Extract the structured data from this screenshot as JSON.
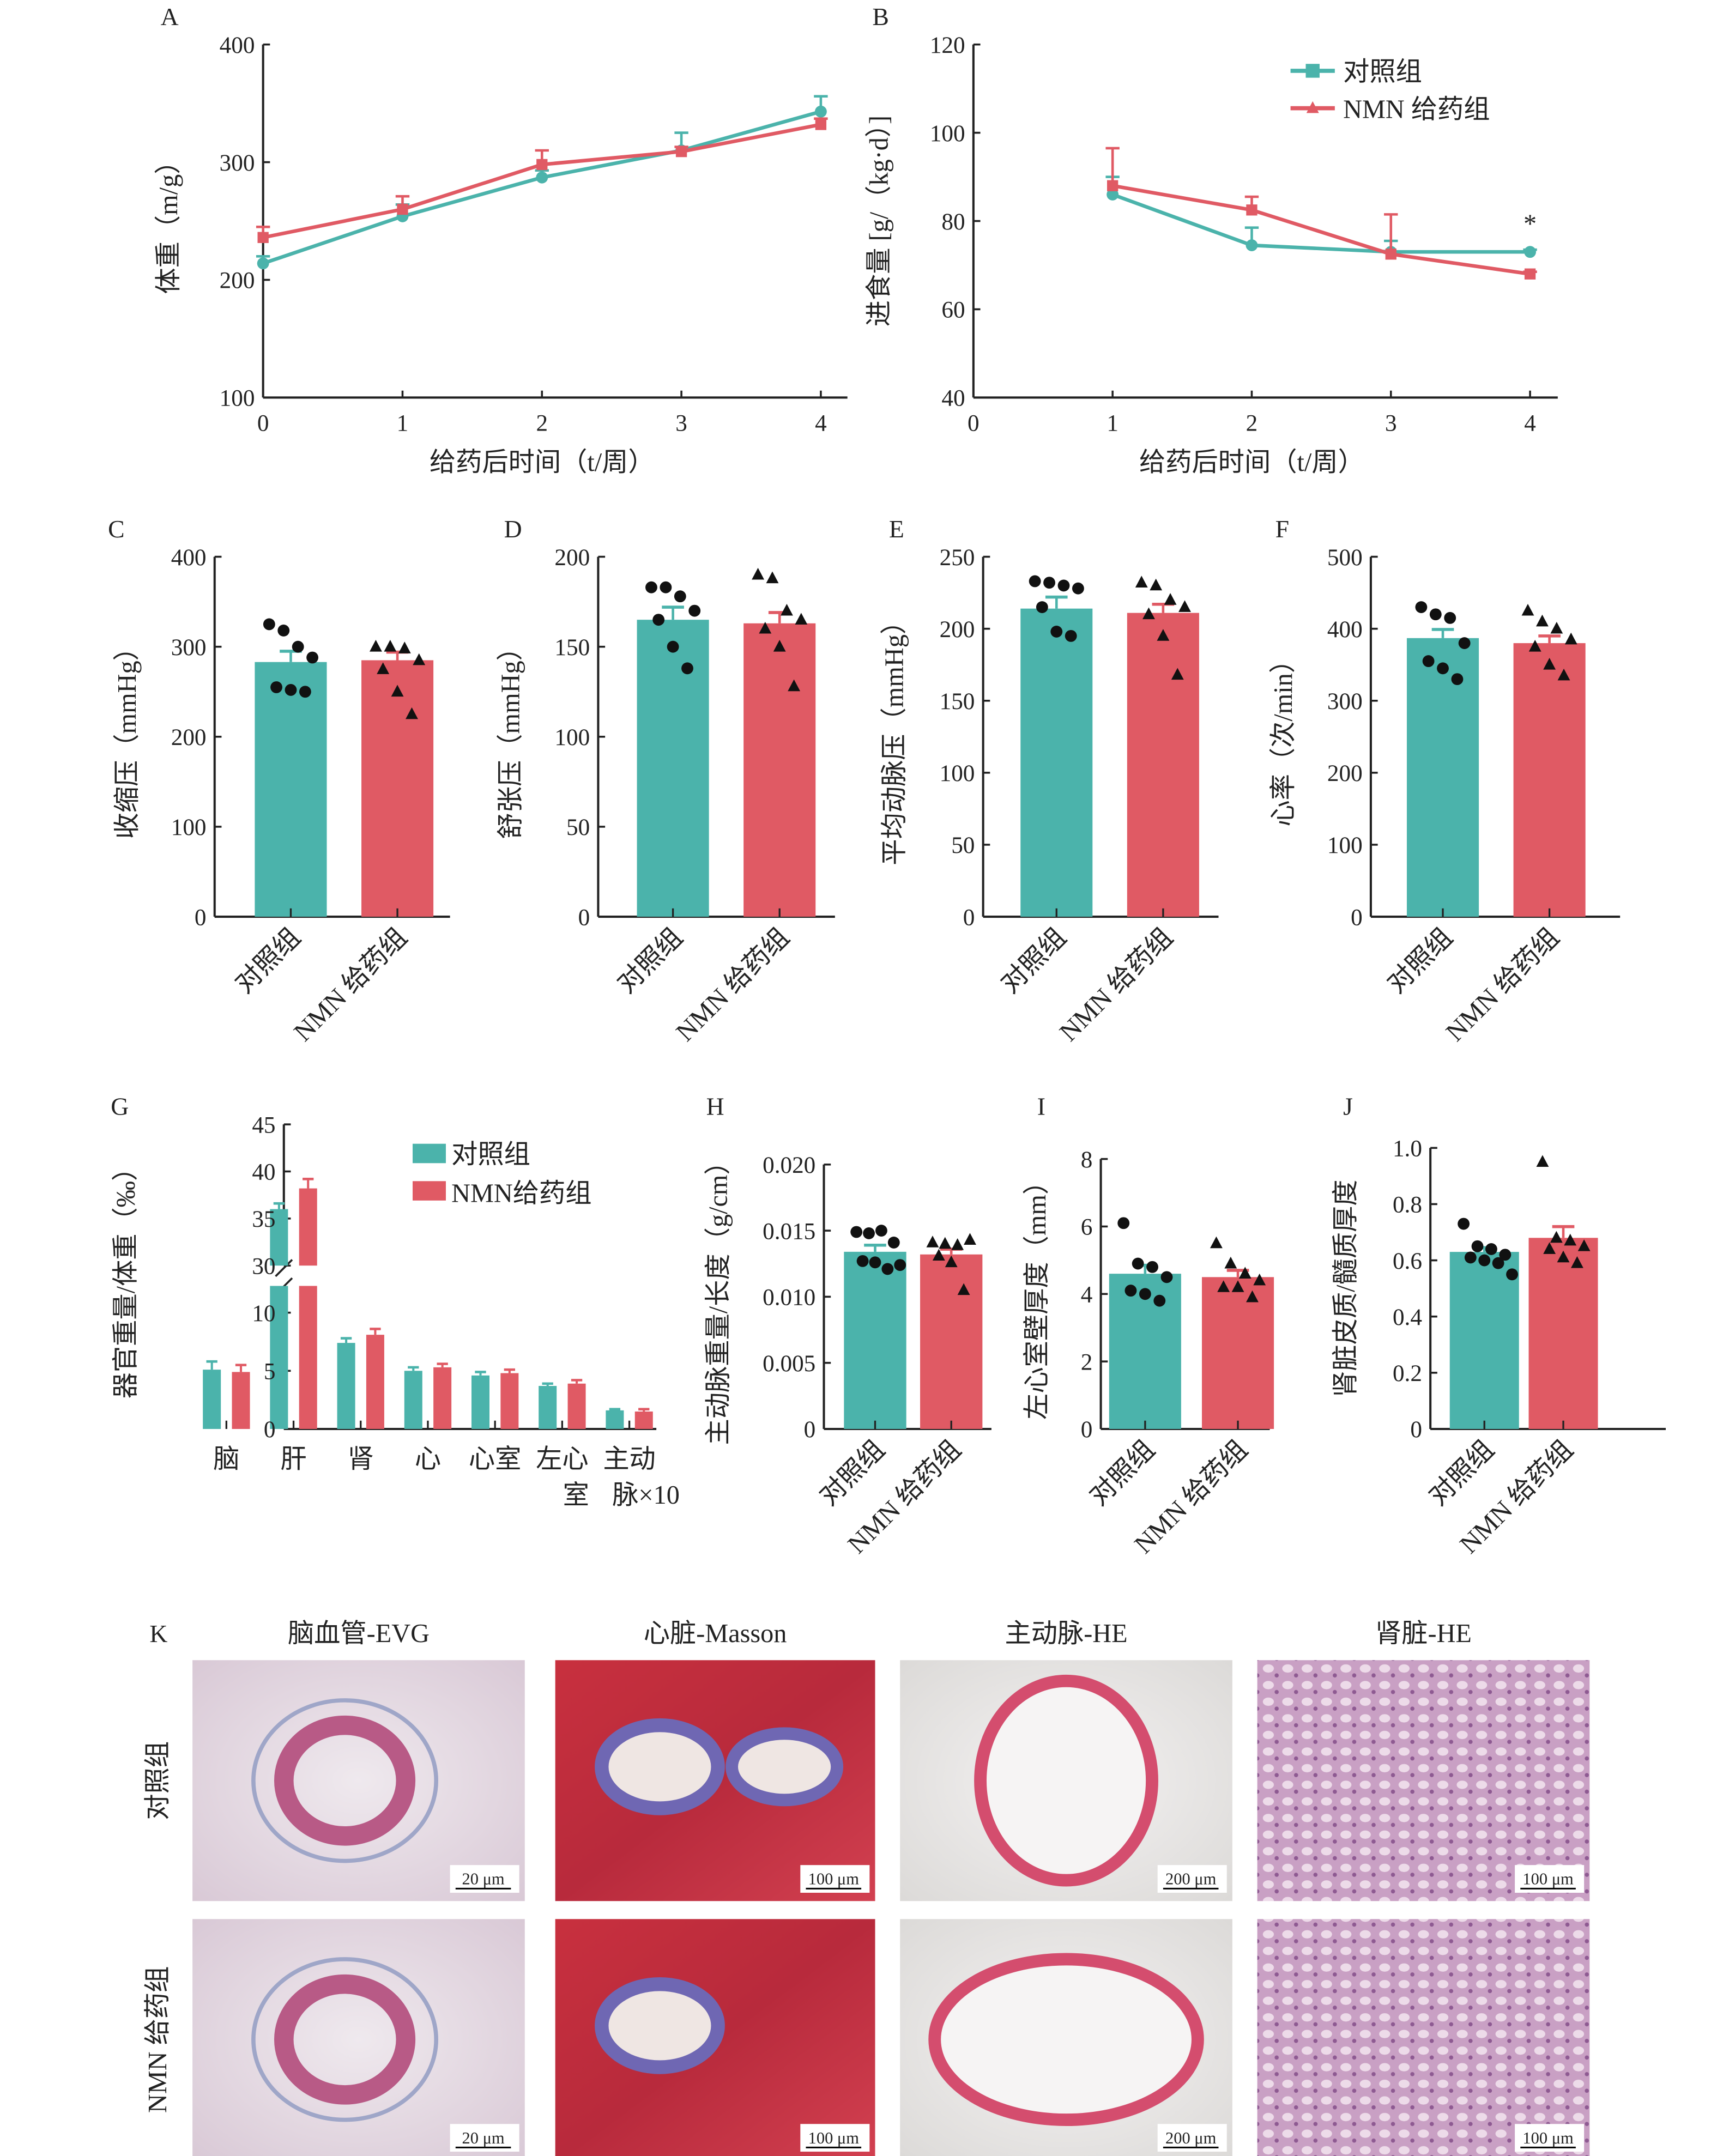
{
  "colors": {
    "control": "#4bb3ab",
    "nmn": "#e05a64",
    "axis": "#222222"
  },
  "legend": {
    "control": "对照组",
    "nmn": "NMN 给药组",
    "nmn_compact": "NMN给药组"
  },
  "group_labels": [
    "对照组",
    "NMN 给药组"
  ],
  "chart_data": [
    {
      "panel": "A",
      "type": "line",
      "x": [
        0,
        1,
        2,
        3,
        4
      ],
      "xticks": [
        "0",
        "1",
        "2",
        "3",
        "4"
      ],
      "ylim": [
        100,
        400
      ],
      "yticks": [
        "100",
        "200",
        "300",
        "400"
      ],
      "ylabel": "体重（m/g）",
      "xlabel": "给药后时间（t/周）",
      "series": [
        {
          "group": "control",
          "marker": "circle",
          "values": [
            214,
            254,
            287,
            310,
            343
          ],
          "err": [
            6,
            10,
            6,
            15,
            13
          ]
        },
        {
          "group": "nmn",
          "marker": "square",
          "values": [
            236,
            260,
            298,
            309,
            332
          ],
          "err": [
            9,
            11,
            12,
            4,
            5
          ]
        }
      ]
    },
    {
      "panel": "B",
      "type": "line",
      "x": [
        1,
        2,
        3,
        4
      ],
      "xticks": [
        "0",
        "1",
        "2",
        "3",
        "4"
      ],
      "ylim": [
        40,
        120
      ],
      "yticks": [
        "40",
        "60",
        "80",
        "100",
        "120"
      ],
      "ylabel": "进食量 [g/（kg·d）]",
      "xlabel": "给药后时间（t/周）",
      "legend_position": "top-right",
      "annotation": "*",
      "series": [
        {
          "name": "对照组",
          "group": "control",
          "marker": "circle",
          "values": [
            86,
            74.5,
            73,
            73
          ],
          "err": [
            4,
            4,
            2.5,
            0.5
          ]
        },
        {
          "name": "NMN 给药组",
          "group": "nmn",
          "marker": "square",
          "values": [
            88,
            82.5,
            72.5,
            68
          ],
          "err": [
            8.5,
            3,
            9,
            0.5
          ]
        }
      ]
    },
    {
      "panel": "C",
      "type": "bar",
      "ylim": [
        0,
        400
      ],
      "yticks": [
        "0",
        "100",
        "200",
        "300",
        "400"
      ],
      "ylabel": "收缩压（mmHg）",
      "values": [
        283,
        285
      ],
      "err": [
        12,
        9
      ],
      "points": [
        [
          325,
          318,
          300,
          288,
          255,
          252,
          250
        ],
        [
          300,
          300,
          298,
          285,
          275,
          250,
          225
        ]
      ]
    },
    {
      "panel": "D",
      "type": "bar",
      "ylim": [
        0,
        200
      ],
      "yticks": [
        "0",
        "50",
        "100",
        "150",
        "200"
      ],
      "ylabel": "舒张压（mmHg）",
      "values": [
        165,
        163
      ],
      "err": [
        7,
        6
      ],
      "points": [
        [
          183,
          183,
          178,
          170,
          165,
          150,
          138
        ],
        [
          190,
          188,
          170,
          165,
          160,
          150,
          128
        ]
      ]
    },
    {
      "panel": "E",
      "type": "bar",
      "ylim": [
        0,
        250
      ],
      "yticks": [
        "0",
        "50",
        "100",
        "150",
        "200",
        "250"
      ],
      "ylabel": "平均动脉压（mmHg）",
      "values": [
        214,
        211
      ],
      "err": [
        8,
        6
      ],
      "points": [
        [
          233,
          232,
          230,
          228,
          215,
          198,
          195
        ],
        [
          232,
          230,
          220,
          215,
          210,
          195,
          168
        ]
      ]
    },
    {
      "panel": "F",
      "type": "bar",
      "ylim": [
        0,
        500
      ],
      "yticks": [
        "0",
        "100",
        "200",
        "300",
        "400",
        "500"
      ],
      "ylabel": "心率（次/min）",
      "values": [
        387,
        380
      ],
      "err": [
        12,
        10
      ],
      "points": [
        [
          430,
          420,
          415,
          380,
          355,
          345,
          330
        ],
        [
          425,
          410,
          400,
          385,
          375,
          350,
          335
        ]
      ]
    },
    {
      "panel": "G",
      "type": "bar",
      "ylim": [
        0,
        45
      ],
      "axis_break": [
        12,
        30
      ],
      "yticks": [
        "0",
        "5",
        "10",
        "30",
        "35",
        "40",
        "45"
      ],
      "ylabel": "器官重量/体重（‰）",
      "categories": [
        [
          "脑",
          ""
        ],
        [
          "肝",
          ""
        ],
        [
          "肾",
          ""
        ],
        [
          "心",
          ""
        ],
        [
          "心室",
          ""
        ],
        [
          "左心",
          "室"
        ],
        [
          "主动",
          "脉×10"
        ]
      ],
      "series": [
        {
          "name": "对照组",
          "group": "control",
          "values": [
            5.1,
            36.0,
            7.4,
            5.0,
            4.6,
            3.7,
            1.6
          ],
          "err": [
            0.7,
            0.6,
            0.4,
            0.3,
            0.3,
            0.2,
            0.1
          ]
        },
        {
          "name": "NMN给药组",
          "group": "nmn",
          "values": [
            4.9,
            38.2,
            8.1,
            5.3,
            4.8,
            3.9,
            1.5
          ],
          "err": [
            0.6,
            1.0,
            0.5,
            0.3,
            0.3,
            0.3,
            0.2
          ]
        }
      ]
    },
    {
      "panel": "H",
      "type": "bar",
      "ylim": [
        0,
        0.02
      ],
      "yticks": [
        "0",
        "0.005",
        "0.010",
        "0.015",
        "0.020"
      ],
      "ylabel": "主动脉重量/长度（g/cm）",
      "values": [
        0.0134,
        0.0132
      ],
      "err": [
        0.0005,
        0.0004
      ],
      "points": [
        [
          0.0149,
          0.0148,
          0.015,
          0.0141,
          0.0127,
          0.0126,
          0.0121,
          0.0124
        ],
        [
          0.0141,
          0.014,
          0.0139,
          0.0143,
          0.0131,
          0.0126,
          0.0105
        ]
      ]
    },
    {
      "panel": "I",
      "type": "bar",
      "ylim": [
        0,
        8
      ],
      "yticks": [
        "0",
        "2",
        "4",
        "6",
        "8"
      ],
      "ylabel": "左心室壁厚度（mm）",
      "values": [
        4.6,
        4.5
      ],
      "err": [
        0.25,
        0.2
      ],
      "points": [
        [
          6.1,
          4.9,
          4.8,
          4.5,
          4.1,
          4.0,
          3.8
        ],
        [
          5.5,
          4.9,
          4.6,
          4.4,
          4.2,
          4.2,
          3.9
        ]
      ]
    },
    {
      "panel": "J",
      "type": "bar",
      "ylim": [
        0,
        1.0
      ],
      "yticks": [
        "0",
        "0.2",
        "0.4",
        "0.6",
        "0.8",
        "1.0"
      ],
      "ylabel": "肾脏皮质/髓质厚度",
      "values": [
        0.63,
        0.68
      ],
      "err": [
        0.015,
        0.04
      ],
      "points": [
        [
          0.73,
          0.65,
          0.64,
          0.62,
          0.61,
          0.6,
          0.59,
          0.55
        ],
        [
          0.95,
          0.68,
          0.67,
          0.65,
          0.64,
          0.61,
          0.59
        ]
      ]
    }
  ],
  "panel_k": {
    "label": "K",
    "columns": [
      "脑血管-EVG",
      "心脏-Masson",
      "主动脉-HE",
      "肾脏-HE"
    ],
    "rows": [
      "对照组",
      "NMN 给药组"
    ],
    "scale_bars": [
      "20 μm",
      "100 μm",
      "200 μm",
      "100 μm"
    ]
  }
}
